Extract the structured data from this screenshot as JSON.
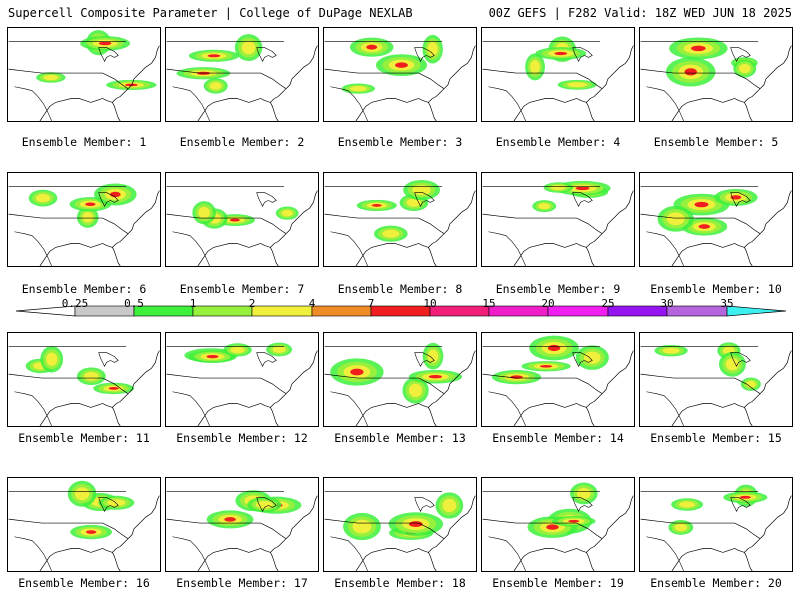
{
  "header": {
    "left": "Supercell Composite Parameter | College of DuPage NEXLAB",
    "right": "00Z GEFS | F282 Valid: 18Z WED JUN 18 2025"
  },
  "panels": [
    {
      "caption": "Ensemble Member: 1"
    },
    {
      "caption": "Ensemble Member: 2"
    },
    {
      "caption": "Ensemble Member: 3"
    },
    {
      "caption": "Ensemble Member: 4"
    },
    {
      "caption": "Ensemble Member: 5"
    },
    {
      "caption": "Ensemble Member: 6"
    },
    {
      "caption": "Ensemble Member: 7"
    },
    {
      "caption": "Ensemble Member: 8"
    },
    {
      "caption": "Ensemble Member: 9"
    },
    {
      "caption": "Ensemble Member: 10"
    },
    {
      "caption": "Ensemble Member: 11"
    },
    {
      "caption": "Ensemble Member: 12"
    },
    {
      "caption": "Ensemble Member: 13"
    },
    {
      "caption": "Ensemble Member: 14"
    },
    {
      "caption": "Ensemble Member: 15"
    },
    {
      "caption": "Ensemble Member: 16"
    },
    {
      "caption": "Ensemble Member: 17"
    },
    {
      "caption": "Ensemble Member: 18"
    },
    {
      "caption": "Ensemble Member: 19"
    },
    {
      "caption": "Ensemble Member: 20"
    }
  ],
  "colorbar": {
    "labels": [
      "0.25",
      "0.5",
      "1",
      "2",
      "4",
      "7",
      "10",
      "15",
      "20",
      "25",
      "30",
      "35"
    ],
    "colors": [
      "#c8c8c8",
      "#3cf03c",
      "#96f03c",
      "#f0f03c",
      "#f08c28",
      "#f01e1e",
      "#f01e78",
      "#f01ec8",
      "#f01ef0",
      "#9614f0",
      "#b464dc",
      "#3cf0f0"
    ]
  }
}
